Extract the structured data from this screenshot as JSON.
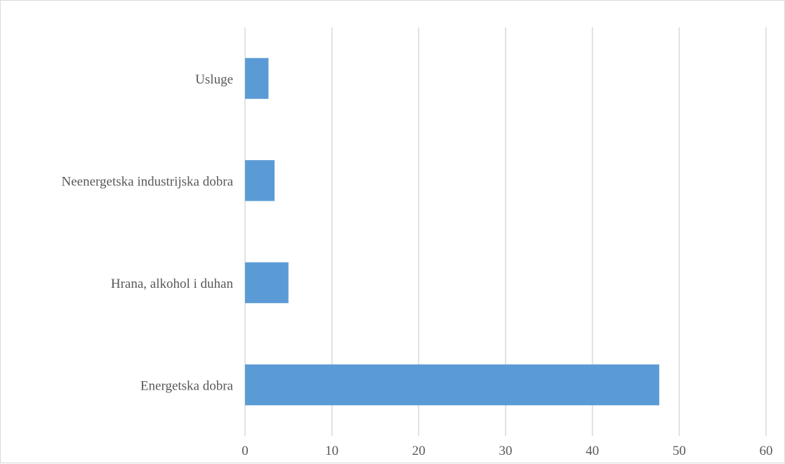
{
  "chart_data": {
    "type": "bar",
    "orientation": "horizontal",
    "title": "",
    "xlabel": "",
    "ylabel": "",
    "categories": [
      "Usluge",
      "Neenergetska industrijska dobra",
      "Hrana, alkohol i duhan",
      "Energetska dobra"
    ],
    "values": [
      2.7,
      3.4,
      5.0,
      47.7
    ],
    "xlim": [
      0,
      60
    ],
    "x_ticks": [
      "0",
      "10",
      "20",
      "30",
      "40",
      "50",
      "60"
    ],
    "grid": true,
    "legend": "none",
    "colors": {
      "bar": "#5b9bd5",
      "grid": "#d9d9d9",
      "text": "#595959"
    }
  }
}
